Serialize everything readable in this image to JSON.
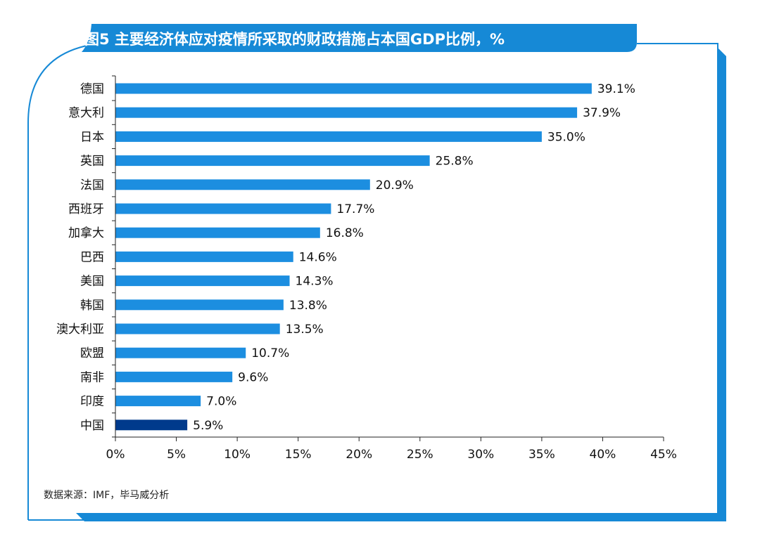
{
  "colors": {
    "frame_blue": "#1689d6",
    "bar": "#1c8ee0",
    "bar_highlight": "#003a8c",
    "axis": "#222222"
  },
  "chart_data": {
    "type": "bar",
    "orientation": "horizontal",
    "title": "图5  主要经济体应对疫情所采取的财政措施占本国GDP比例，%",
    "xlabel": "",
    "ylabel": "",
    "categories": [
      "德国",
      "意大利",
      "日本",
      "英国",
      "法国",
      "西班牙",
      "加拿大",
      "巴西",
      "美国",
      "韩国",
      "澳大利亚",
      "欧盟",
      "南非",
      "印度",
      "中国"
    ],
    "values": [
      39.1,
      37.9,
      35.0,
      25.8,
      20.9,
      17.7,
      16.8,
      14.6,
      14.3,
      13.8,
      13.5,
      10.7,
      9.6,
      7.0,
      5.9
    ],
    "value_labels": [
      "39.1%",
      "37.9%",
      "35.0%",
      "25.8%",
      "20.9%",
      "17.7%",
      "16.8%",
      "14.6%",
      "14.3%",
      "13.8%",
      "13.5%",
      "10.7%",
      "9.6%",
      "7.0%",
      "5.9%"
    ],
    "highlight_category": "中国",
    "xlim": [
      0,
      45
    ],
    "x_ticks": [
      0,
      5,
      10,
      15,
      20,
      25,
      30,
      35,
      40,
      45
    ],
    "x_tick_labels": [
      "0%",
      "5%",
      "10%",
      "15%",
      "20%",
      "25%",
      "30%",
      "35%",
      "40%",
      "45%"
    ],
    "grid": false,
    "source": "数据来源：IMF，毕马威分析"
  }
}
